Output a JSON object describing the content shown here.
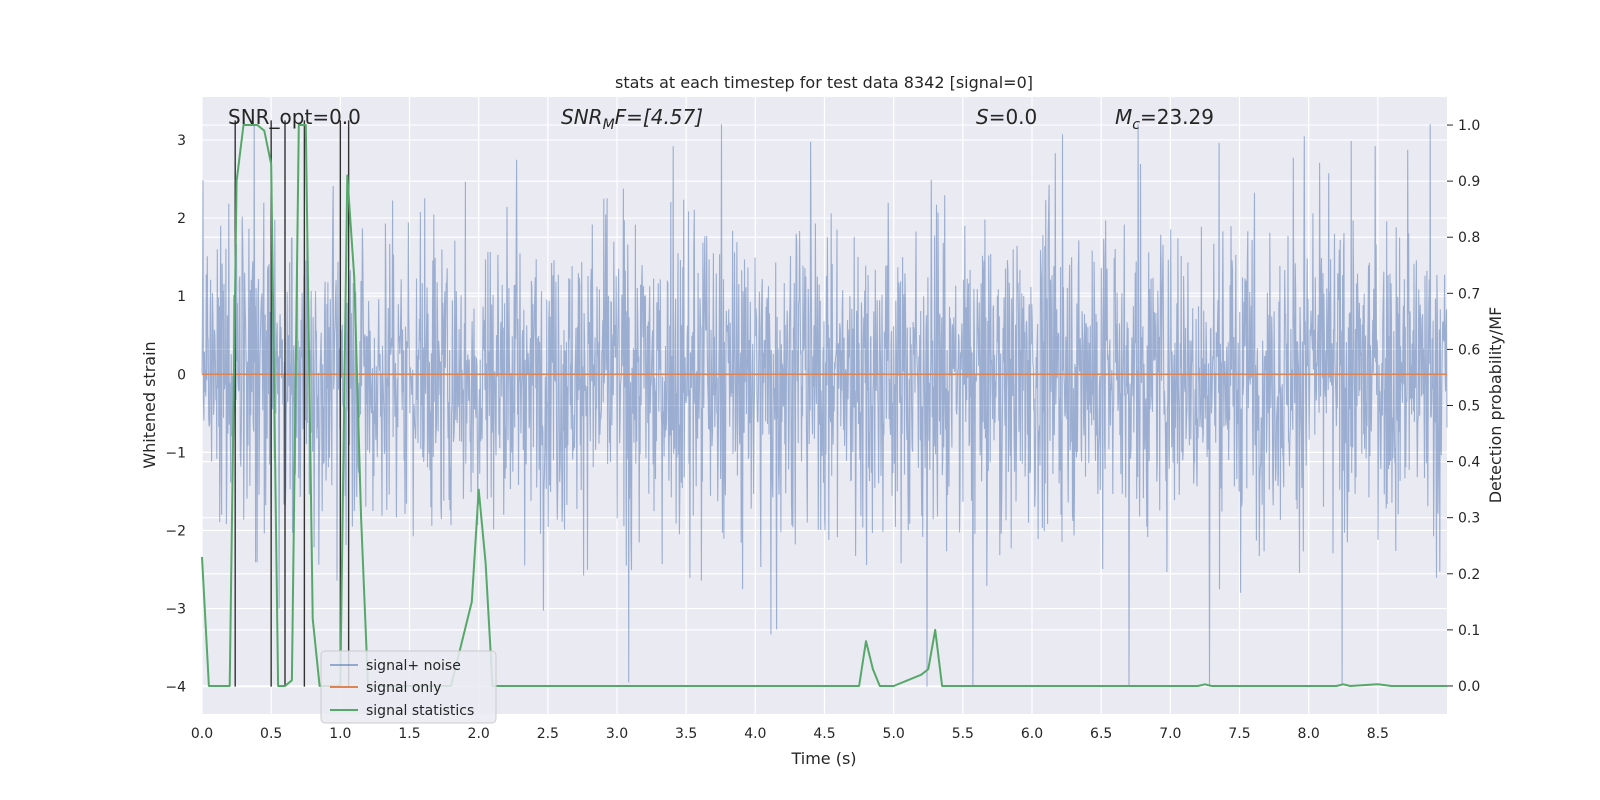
{
  "chart_data": {
    "type": "line",
    "title": "stats at each timestep for test data 8342 [signal=0]",
    "xlabel": "Time (s)",
    "ylabel_left": "Whitened strain",
    "ylabel_right": "Detection probability/MF",
    "xlim": [
      0.0,
      9.0
    ],
    "ylim_left": [
      -4.35,
      3.55
    ],
    "ylim_right": [
      -0.05,
      1.05
    ],
    "xticks": [
      "0.0",
      "0.5",
      "1.0",
      "1.5",
      "2.0",
      "2.5",
      "3.0",
      "3.5",
      "4.0",
      "4.5",
      "5.0",
      "5.5",
      "6.0",
      "6.5",
      "7.0",
      "7.5",
      "8.0",
      "8.5"
    ],
    "xtick_values": [
      0,
      0.5,
      1,
      1.5,
      2,
      2.5,
      3,
      3.5,
      4,
      4.5,
      5,
      5.5,
      6,
      6.5,
      7,
      7.5,
      8,
      8.5
    ],
    "yticks_left": [
      "3",
      "2",
      "1",
      "0",
      "−1",
      "−2",
      "−3",
      "−4"
    ],
    "ytick_left_values": [
      3,
      2,
      1,
      0,
      -1,
      -2,
      -3,
      -4
    ],
    "yticks_right": [
      "1.0",
      "0.9",
      "0.8",
      "0.7",
      "0.6",
      "0.5",
      "0.4",
      "0.3",
      "0.2",
      "0.1",
      "0.0"
    ],
    "ytick_right_values": [
      1.0,
      0.9,
      0.8,
      0.7,
      0.6,
      0.5,
      0.4,
      0.3,
      0.2,
      0.1,
      0.0
    ],
    "annotations": {
      "snr_opt": "SNR_opt=0.0",
      "snr_mf_var": "SNR",
      "snr_mf_sub": "M",
      "snr_mf_rest": "F=[4.57]",
      "s_var": "S",
      "s_rest": "=0.0",
      "mc_var": "M",
      "mc_sub": "c",
      "mc_rest": "=23.29"
    },
    "legend": {
      "position": "lower-left",
      "entries": [
        "signal+ noise",
        "signal only",
        "signal statistics"
      ]
    },
    "series": [
      {
        "name": "signal+ noise",
        "axis": "left",
        "color": "#4c72b0",
        "noise_std": 0.95,
        "typical_peak": 2.0,
        "max_peak": 3.2,
        "min_trough": -4.0,
        "duration": 9.0
      },
      {
        "name": "signal only",
        "axis": "left",
        "color": "#dd8452",
        "x": [
          0.0,
          9.0
        ],
        "values": [
          0.0,
          0.0
        ]
      },
      {
        "name": "signal statistics",
        "axis": "right",
        "color": "#55a868",
        "x": [
          0.0,
          0.05,
          0.1,
          0.15,
          0.2,
          0.25,
          0.3,
          0.35,
          0.4,
          0.45,
          0.5,
          0.55,
          0.6,
          0.65,
          0.7,
          0.75,
          0.8,
          0.85,
          0.9,
          0.95,
          1.0,
          1.05,
          1.1,
          1.15,
          1.2,
          1.4,
          1.6,
          1.8,
          1.95,
          2.0,
          2.05,
          2.1,
          2.2,
          3.0,
          4.0,
          4.75,
          4.8,
          4.85,
          4.9,
          5.0,
          5.2,
          5.25,
          5.3,
          5.35,
          5.5,
          6.0,
          7.0,
          7.2,
          7.25,
          7.3,
          8.0,
          8.2,
          8.25,
          8.3,
          8.5,
          8.6,
          9.0
        ],
        "values": [
          0.23,
          0.0,
          0.0,
          0.0,
          0.0,
          0.9,
          1.0,
          1.0,
          1.0,
          0.99,
          0.93,
          0.0,
          0.0,
          0.01,
          1.0,
          1.0,
          0.12,
          0.0,
          0.0,
          0.0,
          0.0,
          0.91,
          0.73,
          0.3,
          0.0,
          0.0,
          0.0,
          0.0,
          0.15,
          0.35,
          0.22,
          0.0,
          0.0,
          0.0,
          0.0,
          0.0,
          0.08,
          0.03,
          0.0,
          0.0,
          0.02,
          0.03,
          0.1,
          0.0,
          0.0,
          0.0,
          0.0,
          0.0,
          0.003,
          0.0,
          0.0,
          0.0,
          0.003,
          0.0,
          0.003,
          0.0,
          0.0
        ]
      }
    ],
    "vertical_lines": {
      "color": "#333333",
      "x": [
        0.24,
        0.5,
        0.6,
        0.74,
        1.0,
        1.06
      ],
      "y_bottom": -4.0,
      "y_top": 3.25
    }
  }
}
